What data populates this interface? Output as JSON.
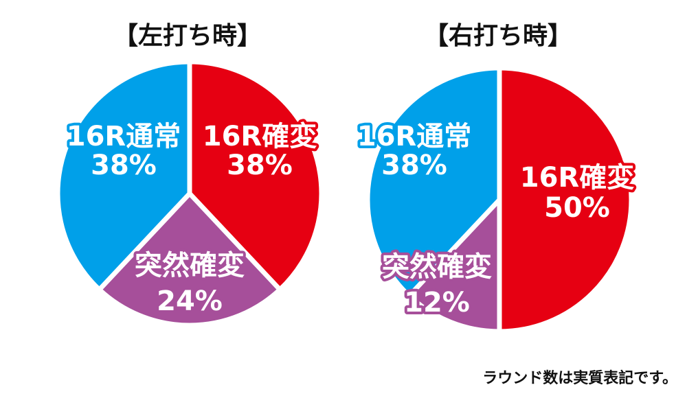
{
  "colors": {
    "16R確変": "#e60012",
    "16R通常": "#00a0e9",
    "突然確変": "#a64f9a"
  },
  "chart_data": [
    {
      "type": "pie",
      "title": "【左打ち時】",
      "slices": [
        {
          "label": "16R確変",
          "value": 38,
          "display": "38%"
        },
        {
          "label": "突然確変",
          "value": 24,
          "display": "24%"
        },
        {
          "label": "16R通常",
          "value": 38,
          "display": "38%"
        }
      ]
    },
    {
      "type": "pie",
      "title": "【右打ち時】",
      "slices": [
        {
          "label": "16R確変",
          "value": 50,
          "display": "50%"
        },
        {
          "label": "突然確変",
          "value": 12,
          "display": "12%"
        },
        {
          "label": "16R通常",
          "value": 38,
          "display": "38%"
        }
      ]
    }
  ],
  "footnote": "ラウンド数は実質表記です。"
}
